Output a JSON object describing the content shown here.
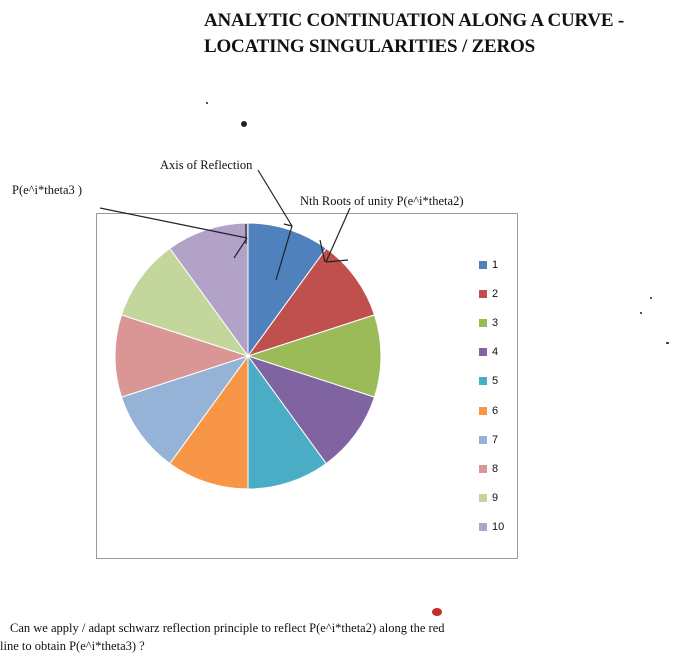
{
  "title": {
    "line1": "ANALYTIC CONTINUATION ALONG A CURVE -",
    "line2": "LOCATING SINGULARITIES / ZEROS"
  },
  "annotations": {
    "axis_of_reflection": "Axis of Reflection",
    "p_theta3": "P(e^i*theta3 )",
    "nth_roots": "Nth Roots of unity P(e^i*theta2)"
  },
  "question": {
    "line1": "Can we apply / adapt schwarz reflection principle to reflect P(e^i*theta2) along the  red",
    "line2": "line to obtain P(e^i*theta3) ?"
  },
  "colors": {
    "slice_colors": [
      "#4f81bd",
      "#c0504d",
      "#9bbb59",
      "#8064a2",
      "#4bacc6",
      "#f79646",
      "#95b3d7",
      "#d99694",
      "#c3d69b",
      "#b3a2c7"
    ],
    "annotation_line": "#222222",
    "red_mark": "#c0302b"
  },
  "chart_data": {
    "type": "pie",
    "categories": [
      "1",
      "2",
      "3",
      "4",
      "5",
      "6",
      "7",
      "8",
      "9",
      "10"
    ],
    "values": [
      1,
      1,
      1,
      1,
      1,
      1,
      1,
      1,
      1,
      1
    ],
    "legend_position": "right",
    "start_angle_deg": 0,
    "direction": "clockwise"
  }
}
